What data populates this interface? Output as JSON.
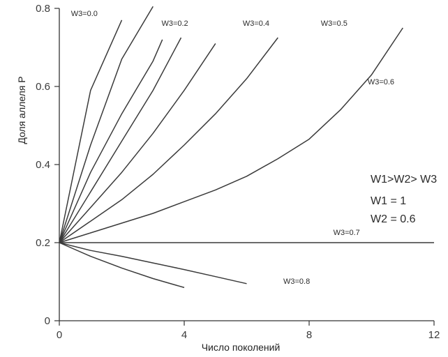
{
  "chart_data": {
    "type": "line",
    "xlabel": "Число поколений",
    "ylabel": "Доля аллеля Р",
    "xlim": [
      0,
      12
    ],
    "ylim": [
      0,
      0.8
    ],
    "x_ticks": [
      "0",
      "4",
      "8",
      "12"
    ],
    "y_ticks": [
      "0",
      "0.2",
      "0.4",
      "0.6",
      "0.8"
    ],
    "grid": false,
    "series": [
      {
        "name": "W3=0.0",
        "x": [
          0,
          1,
          2
        ],
        "y": [
          0.2,
          0.59,
          0.77
        ]
      },
      {
        "name": "",
        "x": [
          0,
          1,
          2,
          3
        ],
        "y": [
          0.2,
          0.45,
          0.67,
          0.805
        ]
      },
      {
        "name": "W3=0.2",
        "x": [
          0,
          1,
          2,
          3,
          3.3
        ],
        "y": [
          0.2,
          0.38,
          0.53,
          0.665,
          0.72
        ]
      },
      {
        "name": "",
        "x": [
          0,
          1,
          2,
          3,
          3.9
        ],
        "y": [
          0.2,
          0.33,
          0.46,
          0.59,
          0.725
        ]
      },
      {
        "name": "W3=0.4",
        "x": [
          0,
          1,
          2,
          3,
          4,
          5
        ],
        "y": [
          0.2,
          0.29,
          0.38,
          0.48,
          0.59,
          0.71
        ]
      },
      {
        "name": "W3=0.5",
        "x": [
          0,
          1,
          2,
          3,
          4,
          5,
          6,
          7
        ],
        "y": [
          0.2,
          0.255,
          0.31,
          0.375,
          0.45,
          0.53,
          0.62,
          0.725
        ]
      },
      {
        "name": "W3=0.6",
        "x": [
          0,
          1,
          2,
          3,
          4,
          5,
          6,
          7,
          8,
          9,
          10,
          11
        ],
        "y": [
          0.2,
          0.225,
          0.25,
          0.275,
          0.305,
          0.335,
          0.37,
          0.415,
          0.465,
          0.54,
          0.63,
          0.75
        ]
      },
      {
        "name": "W3=0.7",
        "x": [
          0,
          12
        ],
        "y": [
          0.2,
          0.2
        ]
      },
      {
        "name": "W3=0.8",
        "x": [
          0,
          1,
          2,
          3,
          4,
          5,
          6
        ],
        "y": [
          0.2,
          0.18,
          0.165,
          0.148,
          0.131,
          0.113,
          0.095
        ]
      },
      {
        "name": "",
        "x": [
          0,
          1,
          2,
          3,
          4
        ],
        "y": [
          0.2,
          0.165,
          0.135,
          0.108,
          0.085
        ]
      }
    ],
    "curve_labels": [
      {
        "text": "W3=0.0",
        "series": 0,
        "x": 0.8,
        "y": 0.78
      },
      {
        "text": "W3=0.2",
        "series": 2,
        "x": 3.7,
        "y": 0.755
      },
      {
        "text": "W3=0.4",
        "series": 4,
        "x": 6.3,
        "y": 0.755
      },
      {
        "text": "W3=0.5",
        "series": 5,
        "x": 8.8,
        "y": 0.755
      },
      {
        "text": "W3=0.6",
        "series": 6,
        "x": 10.3,
        "y": 0.605
      },
      {
        "text": "W3=0.7",
        "series": 7,
        "x": 9.2,
        "y": 0.22
      },
      {
        "text": "W3=0.8",
        "series": 8,
        "x": 7.6,
        "y": 0.095
      }
    ],
    "annotations": [
      "W1>W2> W3",
      "W1 = 1",
      "W2 =  0.6"
    ]
  }
}
